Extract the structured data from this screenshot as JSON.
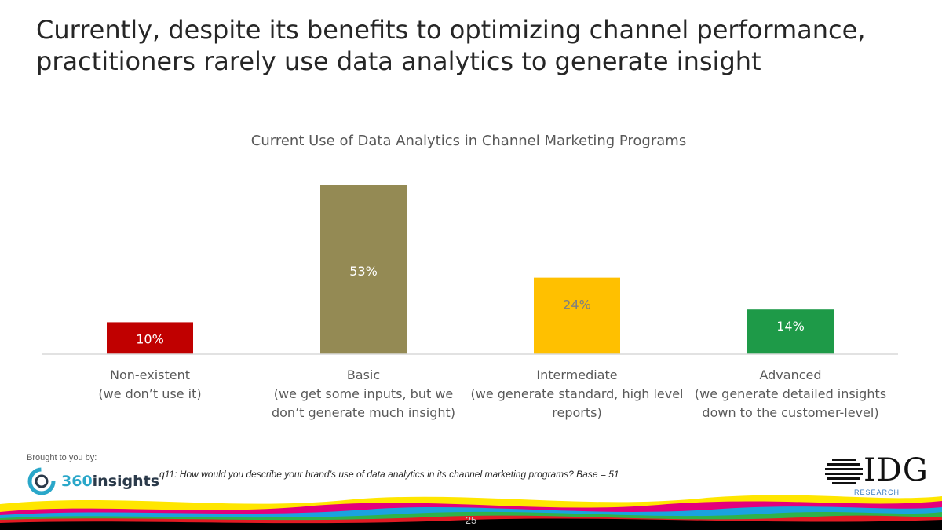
{
  "slide": {
    "title_line1": "Currently, despite its benefits to optimizing channel performance,",
    "title_line2": "practitioners rarely use data analytics to generate insight"
  },
  "chart_data": {
    "type": "bar",
    "title": "Current Use of Data Analytics in Channel Marketing Programs",
    "categories": [
      {
        "line1": "Non-existent",
        "line2": "(we don’t use it)",
        "line3": ""
      },
      {
        "line1": "Basic",
        "line2": "(we get some inputs, but we",
        "line3": "don’t generate much insight)"
      },
      {
        "line1": "Intermediate",
        "line2": "(we generate standard, high level",
        "line3": "reports)"
      },
      {
        "line1": "Advanced",
        "line2": "(we generate detailed insights",
        "line3": "down to the customer-level)"
      }
    ],
    "values": [
      10,
      53,
      24,
      14
    ],
    "data_labels": [
      "10%",
      "53%",
      "24%",
      "14%"
    ],
    "colors": [
      "#c00000",
      "#948a54",
      "#ffc000",
      "#1e9a48"
    ],
    "label_colors": [
      "#ffffff",
      "#ffffff",
      "#7f7f7f",
      "#ffffff"
    ],
    "ylim": [
      0,
      53
    ],
    "xlabel": "",
    "ylabel": "",
    "grid": false,
    "legend": "none"
  },
  "footer": {
    "brought_by": "Brought to you by:",
    "sponsor_logo_num": "360",
    "sponsor_logo_word": "insights",
    "footnote": "q11: How would you describe your brand’s use of data analytics in its channel marketing programs? Base = 51",
    "idg_letters": "IDG",
    "idg_research": "RESEARCH",
    "page_number": "25"
  },
  "colors": {
    "wave_colors": [
      "#ffe600",
      "#e4007c",
      "#1aa3e0",
      "#2fb34a",
      "#e31b23",
      "#000000"
    ]
  }
}
